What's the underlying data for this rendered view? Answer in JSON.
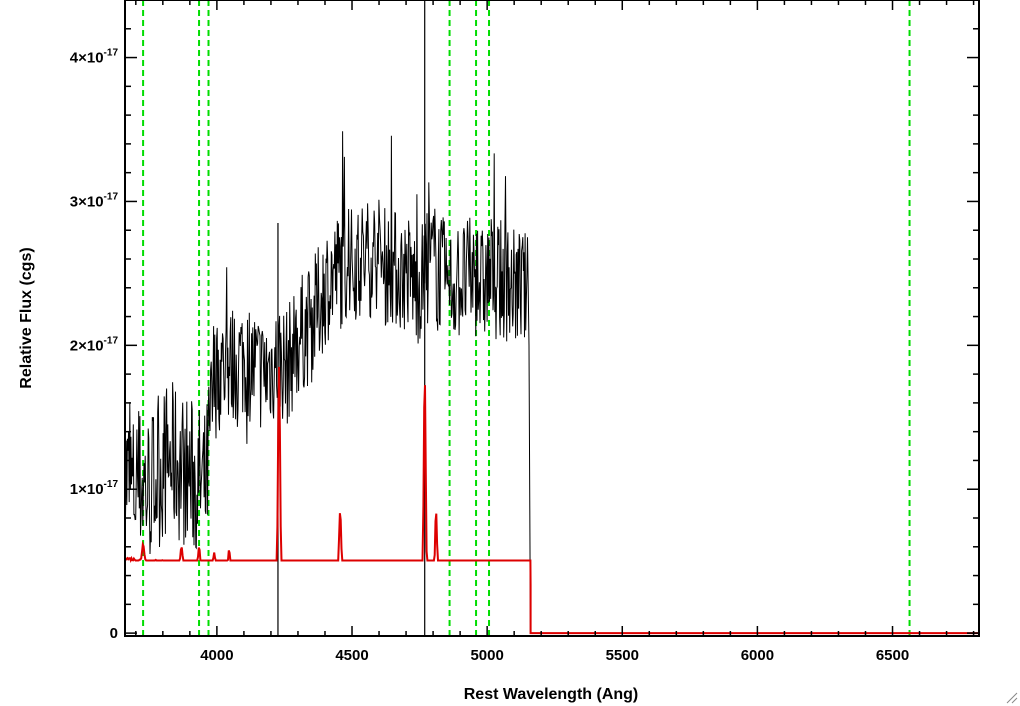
{
  "chart_data": {
    "type": "line",
    "title": "",
    "xlabel": "Rest Wavelength (Ang)",
    "ylabel": "Relative Flux (cgs)",
    "xlim": [
      3660,
      6820
    ],
    "ylim": [
      -0.02,
      4.4
    ],
    "y_scale_exponent": -17,
    "grid": false,
    "legend": "none",
    "x_ticks": [
      {
        "value": 4000,
        "label": "4000"
      },
      {
        "value": 4500,
        "label": "4500"
      },
      {
        "value": 5000,
        "label": "5000"
      },
      {
        "value": 5500,
        "label": "5500"
      },
      {
        "value": 6000,
        "label": "6000"
      },
      {
        "value": 6500,
        "label": "6500"
      }
    ],
    "y_ticks": [
      {
        "value": 0,
        "label": "0",
        "exp": ""
      },
      {
        "value": 1,
        "label": "1×10",
        "exp": "-17"
      },
      {
        "value": 2,
        "label": "2×10",
        "exp": "-17"
      },
      {
        "value": 3,
        "label": "3×10",
        "exp": "-17"
      },
      {
        "value": 4,
        "label": "4×10",
        "exp": "-17"
      }
    ],
    "reference_lines": {
      "color": "#00dd00",
      "style": "dashed",
      "x": [
        3727,
        3934,
        3969,
        4861,
        4959,
        5007,
        6563
      ]
    },
    "series": [
      {
        "color": "#000000",
        "x": [
          3660,
          3690,
          3720,
          3750,
          3780,
          3810,
          3840,
          3870,
          3900,
          3930,
          3960,
          3990,
          4020,
          4050,
          4080,
          4110,
          4140,
          4170,
          4200,
          4230,
          4260,
          4290,
          4320,
          4350,
          4380,
          4410,
          4440,
          4470,
          4500,
          4530,
          4560,
          4590,
          4620,
          4650,
          4680,
          4710,
          4740,
          4770,
          4800,
          4830,
          4860,
          4890,
          4920,
          4950,
          4980,
          5010,
          5040,
          5070,
          5100,
          5130,
          5150,
          5155,
          5160,
          6820
        ],
        "y": [
          1.1,
          1.0,
          1.05,
          1.0,
          1.1,
          1.2,
          1.2,
          1.15,
          1.1,
          1.05,
          1.0,
          1.75,
          1.85,
          1.85,
          1.9,
          1.9,
          1.85,
          1.8,
          1.85,
          1.9,
          1.85,
          2.0,
          2.1,
          2.15,
          2.3,
          2.45,
          2.5,
          2.55,
          2.55,
          2.6,
          2.6,
          2.65,
          2.55,
          2.55,
          2.5,
          2.5,
          2.4,
          2.5,
          2.6,
          2.5,
          2.4,
          2.45,
          2.45,
          2.5,
          2.4,
          2.5,
          2.45,
          2.45,
          2.4,
          2.4,
          2.35,
          2.0,
          0.0,
          0.0
        ]
      },
      {
        "color": "#dd0000",
        "x": [
          3660,
          3700,
          3750,
          3800,
          3850,
          3900,
          3950,
          4000,
          4050,
          4100,
          4150,
          4200,
          4230,
          4250,
          4300,
          4350,
          4400,
          4440,
          4500,
          4550,
          4600,
          4650,
          4700,
          4750,
          4760,
          4800,
          4850,
          4900,
          4950,
          5000,
          5050,
          5100,
          5150,
          5160,
          5161,
          6820
        ],
        "y": [
          0.52,
          0.51,
          0.5,
          0.5,
          0.48,
          0.46,
          0.45,
          0.44,
          0.43,
          0.42,
          0.42,
          0.41,
          0.41,
          0.42,
          0.41,
          0.4,
          0.4,
          0.44,
          0.43,
          0.42,
          0.41,
          0.4,
          0.39,
          0.38,
          0.38,
          0.37,
          0.37,
          0.36,
          0.36,
          0.35,
          0.35,
          0.34,
          0.34,
          0.34,
          0.0,
          0.0
        ]
      }
    ],
    "annotations": [
      {
        "series": 1,
        "type": "emission_peaks",
        "points": [
          [
            3727,
            0.62
          ],
          [
            3869,
            0.6
          ],
          [
            3934,
            0.6
          ],
          [
            3990,
            0.56
          ],
          [
            4045,
            0.58
          ],
          [
            4230,
            1.85
          ],
          [
            4456,
            0.85
          ],
          [
            4610,
            0.45
          ],
          [
            4769,
            1.78
          ],
          [
            4811,
            0.85
          ],
          [
            4900,
            0.46
          ],
          [
            4965,
            0.47
          ]
        ]
      },
      {
        "series": 0,
        "type": "spikes",
        "points": [
          [
            3760,
            -0.02
          ],
          [
            3970,
            -0.02
          ],
          [
            4226,
            2.85
          ],
          [
            4226,
            -0.02
          ],
          [
            4769,
            4.4
          ],
          [
            4769,
            -0.02
          ],
          [
            4812,
            4.4
          ]
        ]
      }
    ]
  }
}
